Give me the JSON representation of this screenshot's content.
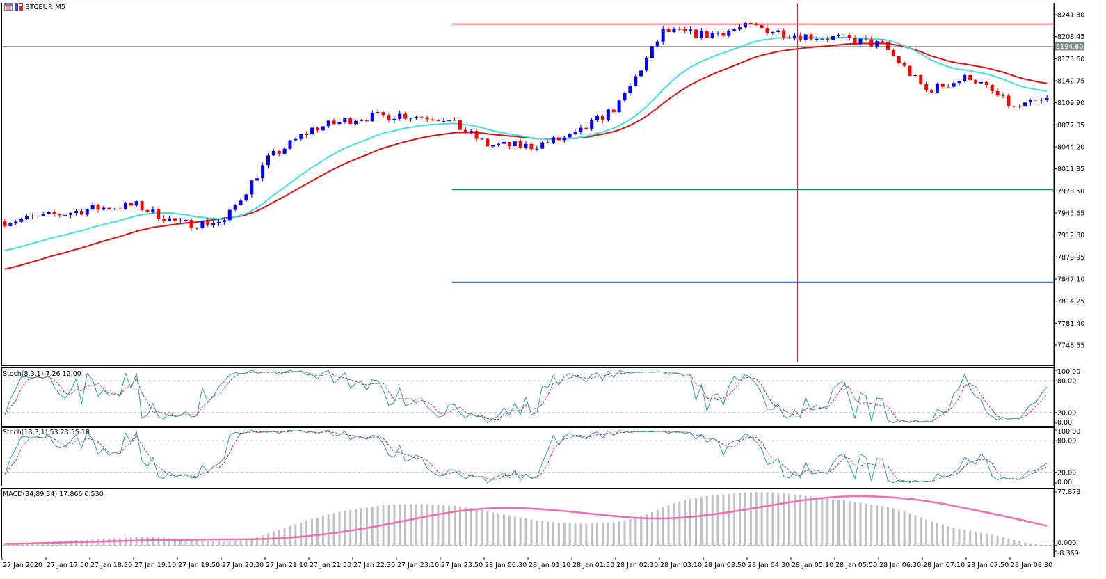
{
  "window": {
    "symbol_title": "BTCEUR,M5",
    "icons": [
      "chart-list-icon",
      "save-icon"
    ]
  },
  "colors": {
    "bull": "#0000ff",
    "bear": "#ff0000",
    "fast_ma": "#40e0e8",
    "slow_ma": "#dd1111",
    "stoch_main": "#2aa198",
    "stoch_signal": "#c71585",
    "macd_hist": "#c0c0c0",
    "macd_signal": "#f06ab4",
    "level_red": "#d42020",
    "level_green": "#13936e",
    "level_blue": "#3a78d8",
    "bid_line": "#7f8c8d"
  },
  "price_axis": {
    "ticks": [
      "8241.30",
      "8208.45",
      "8175.60",
      "8142.75",
      "8109.90",
      "8077.05",
      "8044.20",
      "8011.35",
      "7978.50",
      "7945.65",
      "7912.80",
      "7879.95",
      "7847.10",
      "7814.25",
      "7781.40",
      "7748.55"
    ],
    "max": 8241.3,
    "min": 7748.55,
    "bid": "8194.60"
  },
  "levels": {
    "red": 8227.8,
    "green": 7981.0,
    "blue": 7843.0
  },
  "time_axis": [
    "27 Jan 2020",
    "27 Jan 17:50",
    "27 Jan 18:30",
    "27 Jan 19:10",
    "27 Jan 19:50",
    "27 Jan 20:30",
    "27 Jan 21:10",
    "27 Jan 21:50",
    "27 Jan 22:30",
    "27 Jan 23:10",
    "27 Jan 23:50",
    "28 Jan 00:30",
    "28 Jan 01:10",
    "28 Jan 01:50",
    "28 Jan 02:30",
    "28 Jan 03:10",
    "28 Jan 03:50",
    "28 Jan 04:30",
    "28 Jan 05:10",
    "28 Jan 05:50",
    "28 Jan 06:30",
    "28 Jan 07:10",
    "28 Jan 07:50",
    "28 Jan 08:30"
  ],
  "price_path": [
    7933,
    7941,
    7952,
    7957,
    7929,
    7933,
    8026,
    8071,
    8087,
    8092,
    8087,
    8047,
    8045,
    8061,
    8107,
    8216,
    8211,
    8224,
    8211,
    8206,
    8196,
    8128,
    8149,
    8102,
    8118
  ],
  "stoch1": {
    "label": "Stoch(8,3,1) 7.26 12.00",
    "ticks": [
      "100.00",
      "80.00",
      "20.00",
      "0.00"
    ]
  },
  "stoch2": {
    "label": "Stoch(13,3,1) 53.23 55.18",
    "ticks": [
      "100.00",
      "80.00",
      "20.00",
      "0.00"
    ]
  },
  "macd": {
    "label": "MACD(34,89,34) 17.866 0.530",
    "ticks": [
      "77.878",
      "0.000",
      "-8.369"
    ],
    "max": 77.878,
    "min": -8.369
  }
}
